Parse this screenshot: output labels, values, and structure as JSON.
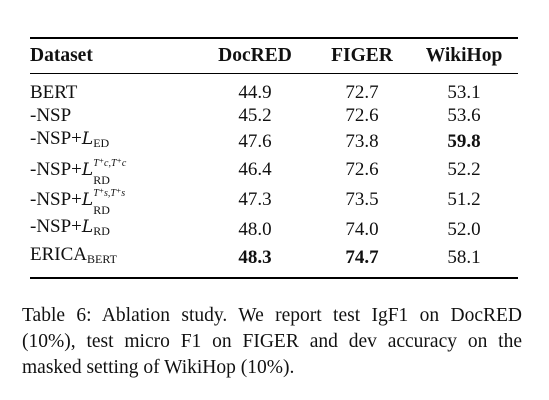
{
  "table": {
    "headers": [
      "Dataset",
      "DocRED",
      "FIGER",
      "WikiHop"
    ],
    "rows": [
      {
        "name": "BERT",
        "docred": "44.9",
        "figer": "72.7",
        "wikihop": "53.1"
      },
      {
        "name": "-NSP",
        "docred": "45.2",
        "figer": "72.6",
        "wikihop": "53.6"
      },
      {
        "name_prefix": "-NSP+",
        "loss_symbol": "L",
        "loss_sub": "ED",
        "docred": "47.6",
        "figer": "73.8",
        "wikihop": "59.8"
      },
      {
        "name_prefix": "-NSP+",
        "loss_symbol": "L",
        "loss_sup": "T⁺c,T⁺c",
        "loss_sub": "RD",
        "docred": "46.4",
        "figer": "72.6",
        "wikihop": "52.2"
      },
      {
        "name_prefix": "-NSP+",
        "loss_symbol": "L",
        "loss_sup": "T⁺s,T⁺s",
        "loss_sub": "RD",
        "docred": "47.3",
        "figer": "73.5",
        "wikihop": "51.2"
      },
      {
        "name_prefix": "-NSP+",
        "loss_symbol": "L",
        "loss_sub": "RD",
        "docred": "48.0",
        "figer": "74.0",
        "wikihop": "52.0"
      },
      {
        "name_main": "ERICA",
        "name_sub": "BERT",
        "docred": "48.3",
        "figer": "74.7",
        "wikihop": "58.1"
      }
    ]
  },
  "caption": "Table 6: Ablation study. We report test IgF1 on DocRED (10%), test micro F1 on FIGER and dev accuracy on the masked setting of WikiHop (10%)."
}
